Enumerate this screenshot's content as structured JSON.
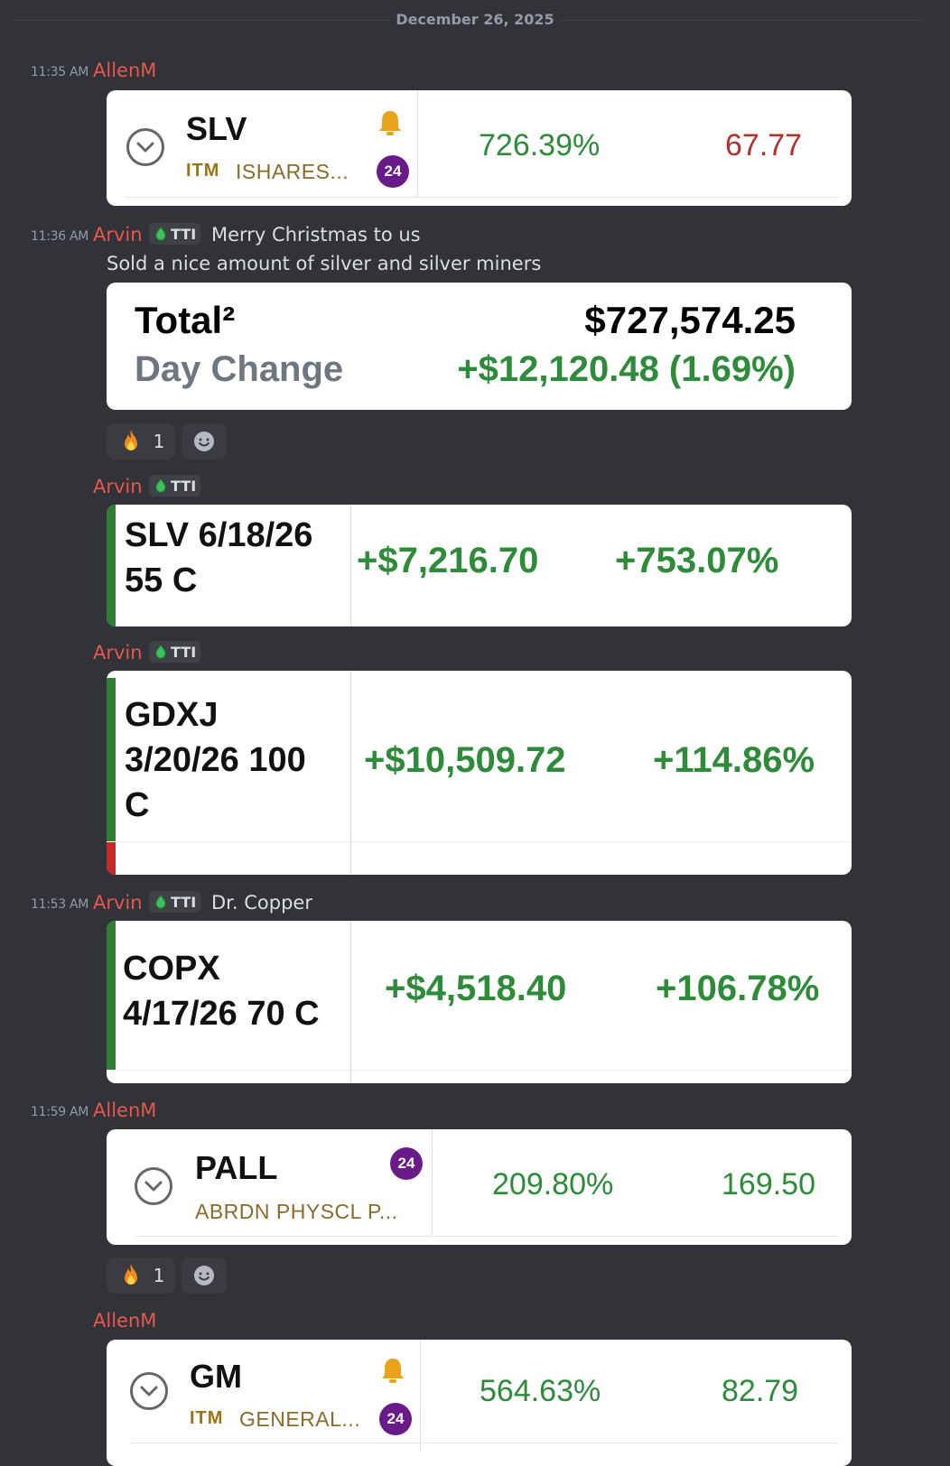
{
  "date_divider": "December 26, 2025",
  "colors": {
    "accent_green": "#2e8b3a",
    "accent_red": "#b2312d",
    "username": "#e8564d",
    "background": "#313338"
  },
  "messages": [
    {
      "time": "11:35 AM",
      "user": "AllenM",
      "card": {
        "ticker": "SLV",
        "itm": "ITM",
        "subtitle": "ISHARES...",
        "badge": "24",
        "icon": "bell-icon",
        "percent": "726.39%",
        "price": "67.77"
      }
    },
    {
      "time": "11:36 AM",
      "user": "Arvin",
      "tag": "TTI",
      "text": "Merry Christmas to us",
      "text2": "Sold a nice amount of silver and silver miners",
      "total_card": {
        "total_label": "Total²",
        "total_value": "$727,574.25",
        "day_label": "Day Change",
        "day_value": "+$12,120.48 (1.69%)"
      },
      "reaction": {
        "emoji": "fire",
        "count": "1"
      }
    },
    {
      "user": "Arvin",
      "tag": "TTI",
      "position": {
        "line1": "SLV 6/18/26",
        "line2": "55 C",
        "pnl": "+$7,216.70",
        "pct": "+753.07%"
      }
    },
    {
      "user": "Arvin",
      "tag": "TTI",
      "position": {
        "line1": "GDXJ",
        "line2": "3/20/26 100",
        "line3": "C",
        "pnl": "+$10,509.72",
        "pct": "+114.86%"
      }
    },
    {
      "time": "11:53 AM",
      "user": "Arvin",
      "tag": "TTI",
      "text": "Dr. Copper",
      "position": {
        "line1": "COPX",
        "line2": "4/17/26 70 C",
        "pnl": "+$4,518.40",
        "pct": "+106.78%"
      }
    },
    {
      "time": "11:59 AM",
      "user": "AllenM",
      "card": {
        "ticker": "PALL",
        "subtitle": "ABRDN PHYSCL P...",
        "badge": "24",
        "percent": "209.80%",
        "price": "169.50"
      },
      "reaction": {
        "emoji": "fire",
        "count": "1"
      }
    },
    {
      "user": "AllenM",
      "card": {
        "ticker": "GM",
        "itm": "ITM",
        "subtitle": "GENERAL...",
        "badge": "24",
        "icon": "bell-icon",
        "percent": "564.63%",
        "price": "82.79"
      }
    }
  ]
}
